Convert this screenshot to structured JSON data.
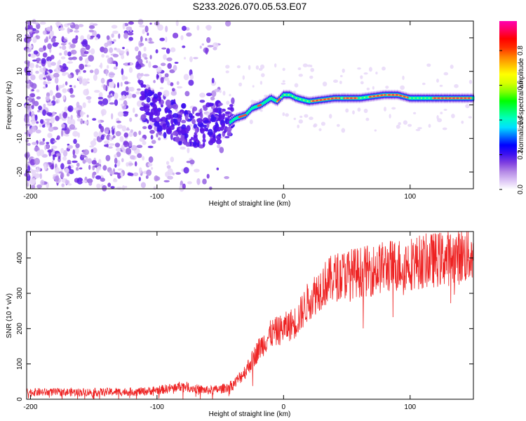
{
  "title": "S233.2026.070.05.53.E07",
  "chart_data": [
    {
      "type": "heatmap",
      "xlabel": "Height of straight line (km)",
      "ylabel": "Frequency (Hz)",
      "xlim": [
        -203,
        150
      ],
      "ylim": [
        -25,
        25
      ],
      "xticks": [
        -200,
        -100,
        0,
        100
      ],
      "yticks": [
        -20,
        -10,
        0,
        10,
        20
      ],
      "colorbar": {
        "label": "Normalized spectral amplitude",
        "range": [
          0,
          0.97
        ],
        "ticks": [
          0.0,
          0.2,
          0.4,
          0.6,
          0.8
        ],
        "tick_labels": [
          "0.0",
          "0.2",
          "0.4",
          "0.6",
          "0.8"
        ],
        "colors": [
          "#ffffff",
          "#dcc4f5",
          "#b58ae6",
          "#7f3fe0",
          "#3b10f0",
          "#0000ff",
          "#0070ff",
          "#00dfff",
          "#00ffc0",
          "#00ff60",
          "#00ff00",
          "#80ff00",
          "#d8ff00",
          "#ffff00",
          "#ffc000",
          "#ff8000",
          "#ff3000",
          "#ff0000",
          "#ff0060",
          "#ff00b0"
        ]
      },
      "ridge": {
        "description": "dominant frequency track",
        "points": [
          [
            -110,
            0
          ],
          [
            -90,
            -4
          ],
          [
            -70,
            -7
          ],
          [
            -55,
            -5
          ],
          [
            -45,
            -6
          ],
          [
            -38,
            -4
          ],
          [
            -30,
            -3
          ],
          [
            -25,
            -1
          ],
          [
            -18,
            0
          ],
          [
            -10,
            2
          ],
          [
            -5,
            1
          ],
          [
            0,
            3
          ],
          [
            5,
            3
          ],
          [
            10,
            2
          ],
          [
            20,
            1
          ],
          [
            40,
            2
          ],
          [
            60,
            2
          ],
          [
            80,
            3
          ],
          [
            90,
            3
          ],
          [
            100,
            2
          ],
          [
            120,
            2
          ],
          [
            150,
            2
          ]
        ]
      }
    },
    {
      "type": "line",
      "xlabel": "Height of straight line (km)",
      "ylabel": "SNR (10 * v/v)",
      "xlim": [
        -203,
        150
      ],
      "ylim": [
        0,
        475
      ],
      "xticks": [
        -200,
        -100,
        0,
        100
      ],
      "yticks": [
        0,
        100,
        200,
        300,
        400
      ],
      "color": "#ee2222",
      "trend": {
        "x": [
          -203,
          -150,
          -110,
          -90,
          -80,
          -70,
          -60,
          -50,
          -40,
          -30,
          -20,
          -10,
          0,
          10,
          20,
          30,
          40,
          50,
          60,
          70,
          80,
          90,
          100,
          110,
          120,
          130,
          140,
          150
        ],
        "y": [
          20,
          20,
          22,
          30,
          38,
          30,
          25,
          28,
          40,
          80,
          140,
          185,
          200,
          220,
          280,
          320,
          345,
          355,
          360,
          365,
          375,
          380,
          385,
          390,
          395,
          400,
          405,
          410
        ]
      }
    }
  ]
}
